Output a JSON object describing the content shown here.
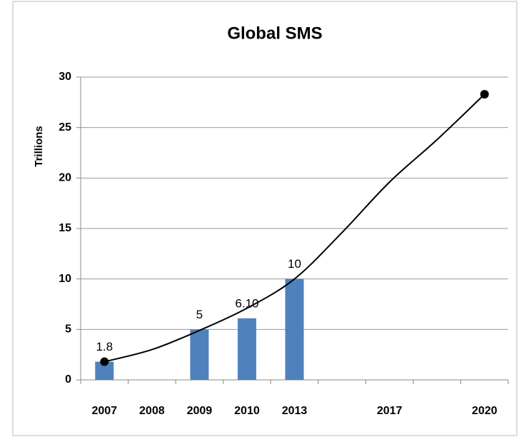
{
  "chart_data": {
    "type": "bar",
    "title": "Global SMS",
    "y_label": "Trillions",
    "categories": [
      "2007",
      "2008",
      "2009",
      "2010",
      "2013",
      null,
      "2017",
      null,
      "2020"
    ],
    "series": [
      {
        "type": "bar",
        "color": "#4f81bd",
        "values": [
          1.8,
          null,
          5,
          6.1,
          10,
          null,
          null,
          null,
          null
        ],
        "value_labels": [
          "1.8",
          null,
          "5",
          "6.10",
          "10",
          null,
          null,
          null,
          null
        ]
      },
      {
        "type": "line",
        "color": "#000000",
        "values": [
          1.8,
          3,
          4.9,
          7.1,
          10,
          14.6,
          19.6,
          23.8,
          28.3
        ]
      }
    ],
    "ylim": [
      0,
      30
    ],
    "yticks": [
      0,
      5,
      10,
      15,
      20,
      25,
      30
    ],
    "grid": true
  }
}
